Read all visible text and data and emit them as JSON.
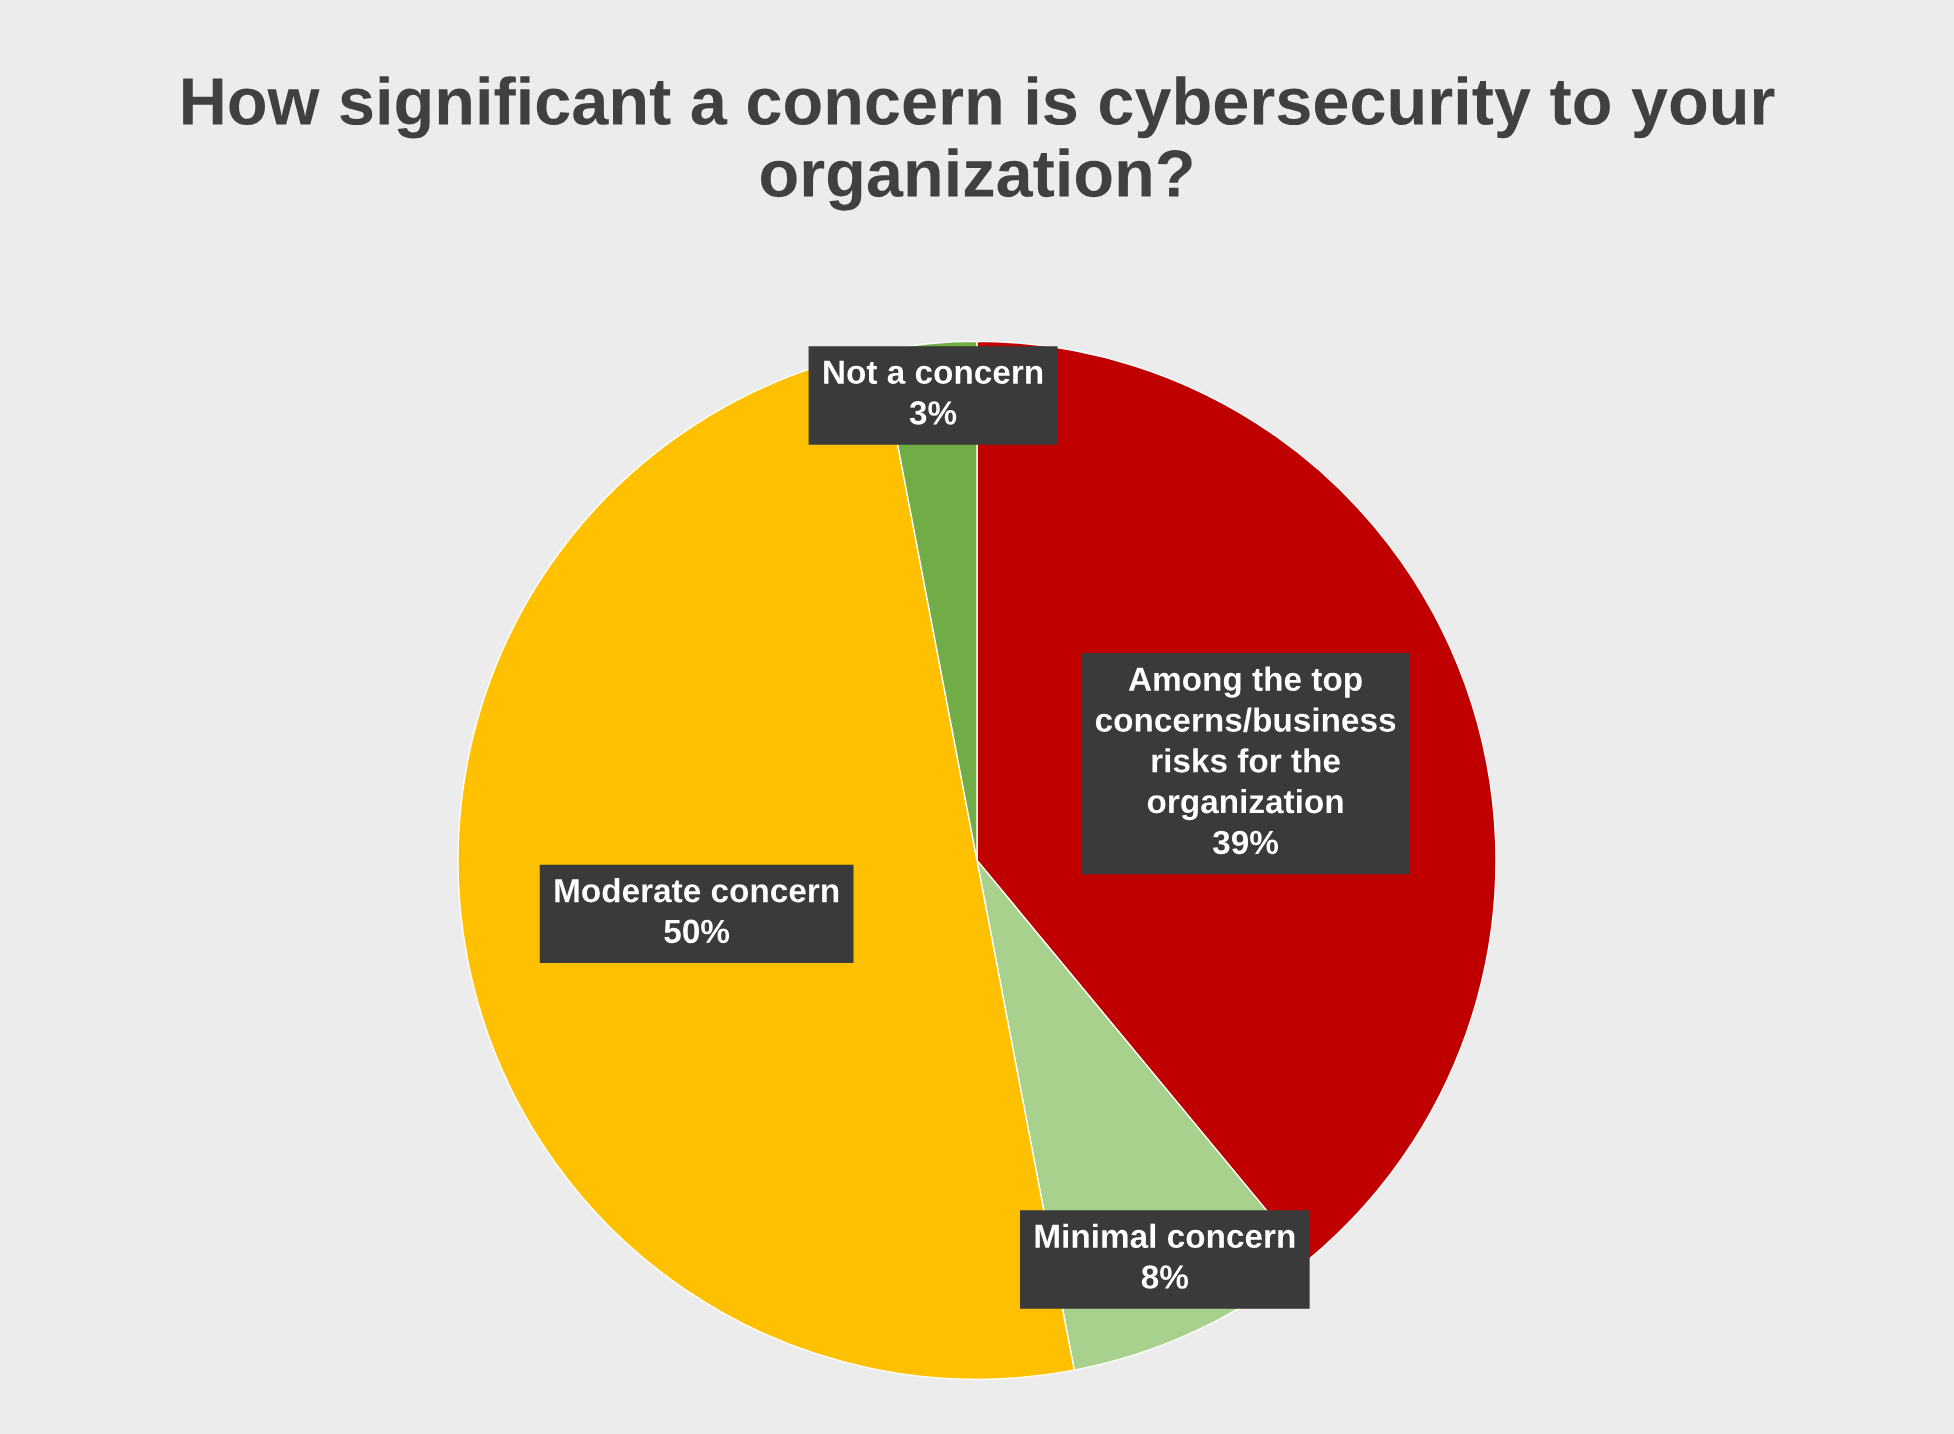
{
  "chart_data": {
    "type": "pie",
    "title": "How significant a concern is cybersecurity to your organization?",
    "categories": [
      "Among the top\nconcerns/business\nrisks for the\norganization",
      "Minimal concern",
      "Moderate concern",
      "Not a concern"
    ],
    "values": [
      39,
      8,
      50,
      3
    ],
    "value_labels": [
      "39%",
      "8%",
      "50%",
      "3%"
    ],
    "colors": [
      "#c00000",
      "#a9d18e",
      "#ffc000",
      "#70ad47"
    ]
  }
}
